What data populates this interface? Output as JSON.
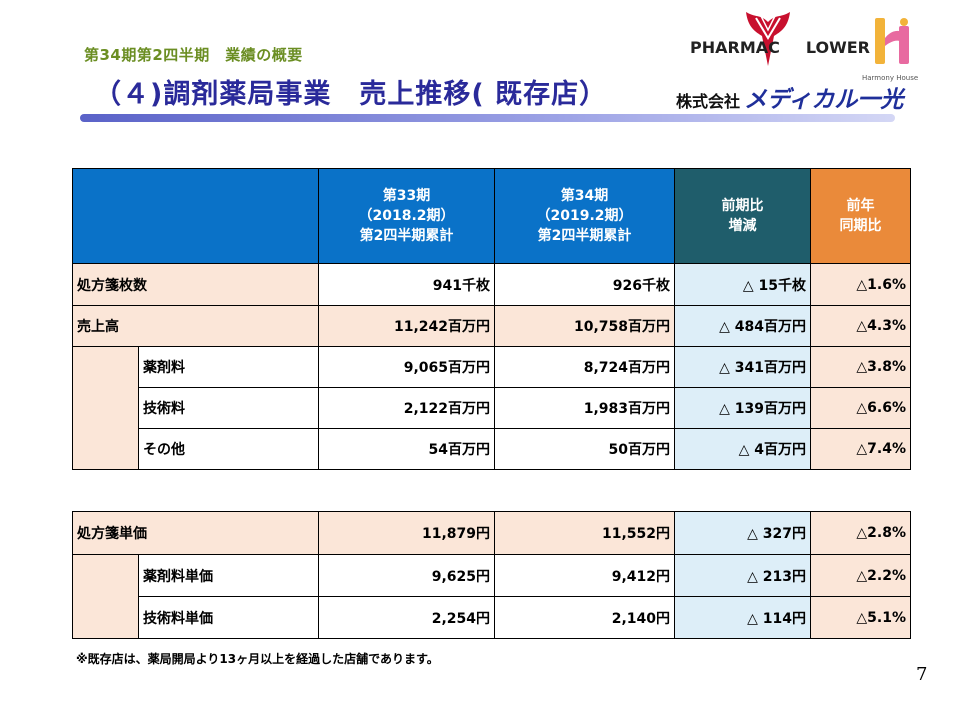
{
  "header": {
    "subtitle": "第34期第2四半期　業績の概要",
    "title": "（４)調剤薬局事業　売上推移( 既存店）"
  },
  "logos": {
    "flower_logo_text": "PHARMAC▼FLOWER",
    "pharmac": "PHARMAC",
    "flower": "LOWER",
    "harmony_house": "Harmony House",
    "company_kk": "株式会社",
    "company_name": "メディカル一光"
  },
  "table_header": {
    "col1": [
      "第33期",
      "（2018.2期）",
      "第2四半期累計"
    ],
    "col2": [
      "第34期",
      "（2019.2期）",
      "第2四半期累計"
    ],
    "col3": [
      "前期比",
      "増減"
    ],
    "col4": [
      "前年",
      "同期比"
    ]
  },
  "table1": {
    "rows": [
      {
        "label": "処方箋枚数",
        "v33": "941千枚",
        "v34": "926千枚",
        "diff": "△ 15千枚",
        "yoy": "△1.6%"
      },
      {
        "label": "売上高",
        "v33": "11,242百万円",
        "v34": "10,758百万円",
        "diff": "△ 484百万円",
        "yoy": "△4.3%"
      },
      {
        "label": "薬剤料",
        "v33": "9,065百万円",
        "v34": "8,724百万円",
        "diff": "△ 341百万円",
        "yoy": "△3.8%"
      },
      {
        "label": "技術料",
        "v33": "2,122百万円",
        "v34": "1,983百万円",
        "diff": "△ 139百万円",
        "yoy": "△6.6%"
      },
      {
        "label": "その他",
        "v33": "54百万円",
        "v34": "50百万円",
        "diff": "△ 4百万円",
        "yoy": "△7.4%"
      }
    ]
  },
  "table2": {
    "rows": [
      {
        "label": "処方箋単価",
        "v33": "11,879円",
        "v34": "11,552円",
        "diff": "△ 327円",
        "yoy": "△2.8%"
      },
      {
        "label": "薬剤料単価",
        "v33": "9,625円",
        "v34": "9,412円",
        "diff": "△ 213円",
        "yoy": "△2.2%"
      },
      {
        "label": "技術料単価",
        "v33": "2,254円",
        "v34": "2,140円",
        "diff": "△ 114円",
        "yoy": "△5.1%"
      }
    ]
  },
  "note": "※既存店は、薬局開局より13ヶ月以上を経過した店舗であります。",
  "page_number": "7",
  "colors": {
    "header_blue": "#0a72c8",
    "header_teal": "#1f5d6b",
    "header_orange": "#ea8a3a",
    "row_peach": "#fbe6d8",
    "diff_lightblue": "#ddeef8",
    "title_navy": "#2a2a9a",
    "subtitle_olive": "#6b8e23"
  }
}
